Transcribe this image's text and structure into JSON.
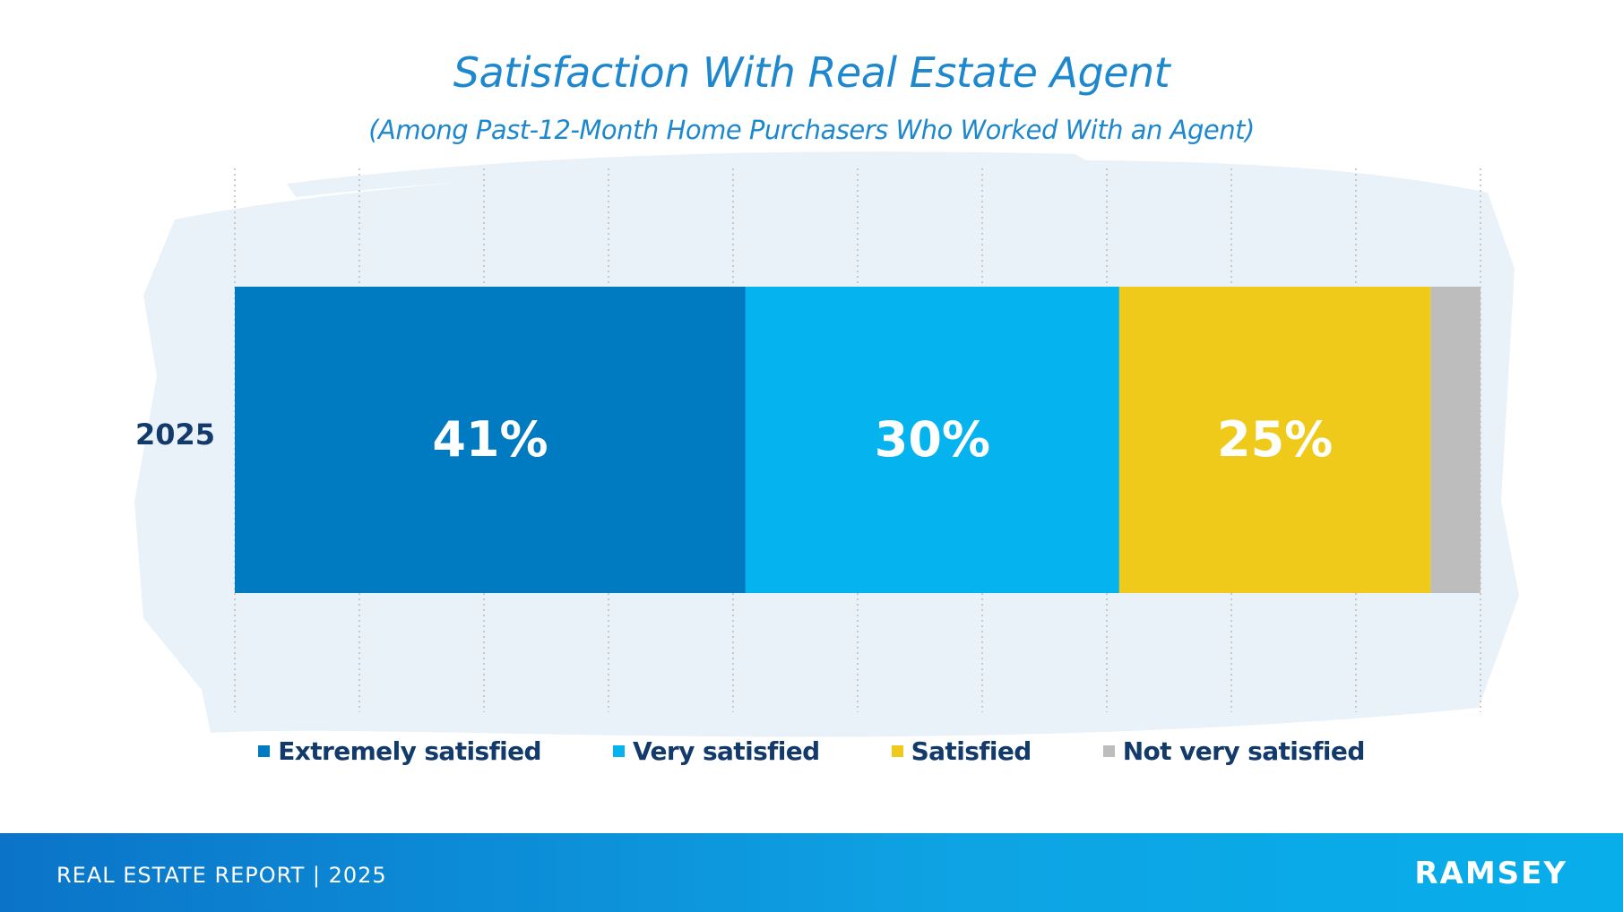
{
  "chart_data": {
    "type": "bar",
    "orientation": "horizontal-stacked",
    "title": "Satisfaction With Real Estate Agent",
    "subtitle": "(Among Past-12-Month Home Purchasers Who Worked With an Agent)",
    "categories": [
      "2025"
    ],
    "xlim": [
      0,
      100
    ],
    "grid": true,
    "legend_position": "bottom",
    "series": [
      {
        "name": "Extremely satisfied",
        "values": [
          41
        ],
        "label": "41%",
        "color": "#007ac1"
      },
      {
        "name": "Very satisfied",
        "values": [
          30
        ],
        "label": "30%",
        "color": "#05b4ef"
      },
      {
        "name": "Satisfied",
        "values": [
          25
        ],
        "label": "25%",
        "color": "#f0ca1a"
      },
      {
        "name": "Not very satisfied",
        "values": [
          4
        ],
        "label": "",
        "color": "#bdbdbd"
      }
    ]
  },
  "footer": {
    "report": "REAL ESTATE REPORT | 2025",
    "brand": "RAMSEY"
  },
  "colors": {
    "title": "#1e88cf",
    "category_label": "#123a6b",
    "legend_text": "#123a6b",
    "footer_band": "#0b8fd6",
    "brush_background": "#e9f2f8"
  }
}
